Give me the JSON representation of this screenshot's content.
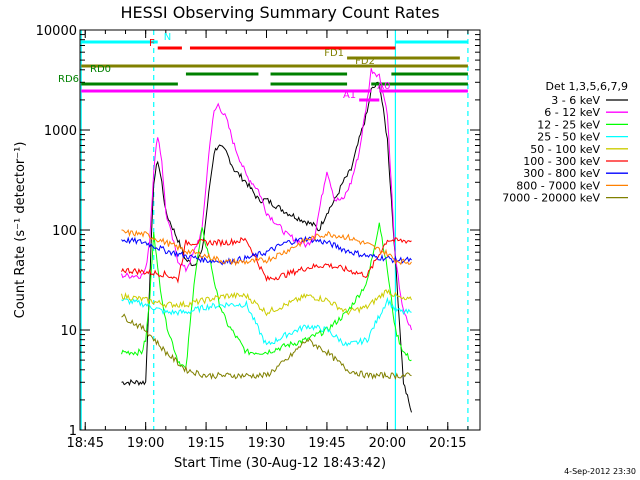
{
  "chart_data": {
    "type": "line",
    "title": "HESSI Observing Summary Count Rates",
    "xlabel": "Start Time (30-Aug-12 18:43:42)",
    "ylabel": "Count Rate (s⁻¹ detector⁻¹)",
    "y_scale": "log",
    "ylim": [
      1,
      10000
    ],
    "xlim": [
      "18:43:42",
      "20:23:00"
    ],
    "x_ticks": [
      "18:45",
      "19:00",
      "19:15",
      "19:30",
      "19:45",
      "20:00",
      "20:15"
    ],
    "y_ticks": [
      "1",
      "10",
      "100",
      "1000",
      "10000"
    ],
    "timestamp": "4-Sep-2012 23:30",
    "legend": {
      "title": "Det 1,3,5,6,7,9",
      "placement": "right",
      "entries": [
        {
          "label": "3 - 6 keV",
          "color": "#000000"
        },
        {
          "label": "6 - 12 keV",
          "color": "#ff00ff"
        },
        {
          "label": "12 - 25 keV",
          "color": "#00ff00"
        },
        {
          "label": "25 - 50 keV",
          "color": "#00ffff"
        },
        {
          "label": "50 - 100 keV",
          "color": "#cccc00"
        },
        {
          "label": "100 - 300 keV",
          "color": "#ff0000"
        },
        {
          "label": "300 - 800 keV",
          "color": "#0000ff"
        },
        {
          "label": "800 - 7000 keV",
          "color": "#ff8000"
        },
        {
          "label": "7000 - 20000 keV",
          "color": "#808000"
        }
      ]
    },
    "flags": [
      {
        "label": "N",
        "color": "#00ffff",
        "segments": [
          [
            "18:44",
            "19:03"
          ],
          [
            "20:02",
            "20:20"
          ]
        ]
      },
      {
        "label": "F",
        "color": "#ff0000",
        "segments": [
          [
            "19:03",
            "19:09"
          ],
          [
            "19:11",
            "20:02"
          ]
        ]
      },
      {
        "label": "FD1",
        "color": "#808000",
        "segments": [
          [
            "19:50",
            "20:18"
          ]
        ]
      },
      {
        "label": "FD2",
        "color": "#808000",
        "segments": [
          [
            "18:44",
            "20:20"
          ]
        ]
      },
      {
        "label": "RD0",
        "color": "#008000",
        "segments": [
          [
            "19:10",
            "19:28"
          ],
          [
            "19:31",
            "19:50"
          ],
          [
            "20:01",
            "20:20"
          ]
        ]
      },
      {
        "label": "RD6",
        "color": "#008000",
        "segments": [
          [
            "18:44",
            "19:08"
          ],
          [
            "19:31",
            "19:50"
          ],
          [
            "19:56",
            "20:20"
          ]
        ]
      },
      {
        "label": "A1",
        "color": "#ff00ff",
        "segments": [
          [
            "19:53",
            "19:58"
          ]
        ]
      },
      {
        "label": "A0",
        "color": "#ff00ff",
        "segments": [
          [
            "18:44",
            "19:56"
          ],
          [
            "19:58",
            "20:20"
          ]
        ]
      }
    ],
    "vertical_lines": [
      {
        "time": "18:44",
        "color": "#00ffff",
        "style": "solid"
      },
      {
        "time": "19:02",
        "color": "#00ffff",
        "style": "dashed"
      },
      {
        "time": "20:02",
        "color": "#00ffff",
        "style": "solid"
      },
      {
        "time": "20:20",
        "color": "#00ffff",
        "style": "dashed"
      }
    ],
    "series": [
      {
        "name": "3 - 6 keV",
        "color": "#000000",
        "x": [
          "18:54",
          "18:59",
          "19:00",
          "19:01",
          "19:02",
          "19:03",
          "19:04",
          "19:05",
          "19:08",
          "19:10",
          "19:12",
          "19:14",
          "19:16",
          "19:17",
          "19:18",
          "19:20",
          "19:22",
          "19:25",
          "19:28",
          "19:30",
          "19:35",
          "19:40",
          "19:42",
          "19:43",
          "19:45",
          "19:47",
          "19:49",
          "19:51",
          "19:53",
          "19:55",
          "19:56",
          "19:58",
          "20:00",
          "20:02",
          "20:04",
          "20:06"
        ],
        "y": [
          3,
          3,
          3,
          30,
          300,
          500,
          300,
          150,
          80,
          50,
          45,
          60,
          300,
          600,
          700,
          600,
          400,
          300,
          200,
          200,
          150,
          120,
          110,
          100,
          150,
          200,
          300,
          400,
          800,
          1500,
          2500,
          3000,
          800,
          50,
          3,
          1.5
        ]
      },
      {
        "name": "6 - 12 keV",
        "color": "#ff00ff",
        "x": [
          "18:54",
          "18:59",
          "19:00",
          "19:01",
          "19:02",
          "19:03",
          "19:04",
          "19:05",
          "19:08",
          "19:10",
          "19:12",
          "19:14",
          "19:16",
          "19:17",
          "19:18",
          "19:20",
          "19:22",
          "19:25",
          "19:28",
          "19:30",
          "19:35",
          "19:40",
          "19:42",
          "19:43",
          "19:45",
          "19:47",
          "19:49",
          "19:51",
          "19:53",
          "19:55",
          "19:56",
          "19:58",
          "20:00",
          "20:02",
          "20:04",
          "20:06"
        ],
        "y": [
          35,
          35,
          40,
          80,
          400,
          900,
          500,
          150,
          50,
          40,
          60,
          100,
          800,
          1500,
          1800,
          1300,
          700,
          350,
          250,
          150,
          90,
          70,
          90,
          150,
          400,
          200,
          200,
          300,
          600,
          2000,
          4000,
          3500,
          1500,
          50,
          15,
          10
        ]
      },
      {
        "name": "12 - 25 keV",
        "color": "#00ff00",
        "x": [
          "18:54",
          "18:59",
          "19:00",
          "19:01",
          "19:02",
          "19:03",
          "19:05",
          "19:08",
          "19:10",
          "19:12",
          "19:14",
          "19:16",
          "19:18",
          "19:20",
          "19:25",
          "19:30",
          "19:35",
          "19:40",
          "19:45",
          "19:50",
          "19:55",
          "19:58",
          "20:00",
          "20:02",
          "20:04",
          "20:06"
        ],
        "y": [
          6,
          6,
          8,
          20,
          100,
          40,
          12,
          5,
          4,
          30,
          100,
          50,
          20,
          12,
          6,
          6,
          7,
          8,
          10,
          15,
          30,
          120,
          40,
          10,
          6,
          5
        ]
      },
      {
        "name": "25 - 50 keV",
        "color": "#00ffff",
        "x": [
          "18:54",
          "19:00",
          "19:05",
          "19:10",
          "19:15",
          "19:20",
          "19:25",
          "19:30",
          "19:35",
          "19:40",
          "19:45",
          "19:50",
          "19:55",
          "20:00",
          "20:02",
          "20:04",
          "20:06"
        ],
        "y": [
          20,
          18,
          15,
          15,
          17,
          18,
          18,
          7,
          9,
          11,
          10,
          7,
          8,
          20,
          16,
          15,
          15
        ]
      },
      {
        "name": "50 - 100 keV",
        "color": "#cccc00",
        "x": [
          "18:54",
          "19:00",
          "19:05",
          "19:10",
          "19:15",
          "19:20",
          "19:25",
          "19:30",
          "19:35",
          "19:40",
          "19:45",
          "19:50",
          "19:55",
          "20:00",
          "20:02",
          "20:04",
          "20:06"
        ],
        "y": [
          22,
          20,
          18,
          18,
          20,
          22,
          22,
          15,
          18,
          22,
          20,
          15,
          17,
          25,
          22,
          20,
          20
        ]
      },
      {
        "name": "100 - 300 keV",
        "color": "#ff0000",
        "x": [
          "18:54",
          "19:00",
          "19:05",
          "19:08",
          "19:10",
          "19:12",
          "19:15",
          "19:20",
          "19:25",
          "19:30",
          "19:35",
          "19:40",
          "19:45",
          "19:50",
          "19:55",
          "20:00",
          "20:02",
          "20:04",
          "20:06"
        ],
        "y": [
          40,
          38,
          36,
          32,
          75,
          75,
          75,
          75,
          80,
          32,
          36,
          42,
          45,
          40,
          35,
          80,
          78,
          78,
          78
        ]
      },
      {
        "name": "300 - 800 keV",
        "color": "#0000ff",
        "x": [
          "18:54",
          "19:00",
          "19:05",
          "19:10",
          "19:15",
          "19:20",
          "19:25",
          "19:30",
          "19:35",
          "19:40",
          "19:45",
          "19:50",
          "19:55",
          "20:00",
          "20:02",
          "20:04",
          "20:06"
        ],
        "y": [
          80,
          75,
          62,
          55,
          50,
          48,
          52,
          60,
          75,
          82,
          75,
          62,
          55,
          52,
          50,
          50,
          50
        ]
      },
      {
        "name": "800 - 7000 keV",
        "color": "#ff8000",
        "x": [
          "18:54",
          "19:00",
          "19:05",
          "19:10",
          "19:15",
          "19:20",
          "19:25",
          "19:30",
          "19:35",
          "19:40",
          "19:45",
          "19:50",
          "19:55",
          "20:00",
          "20:02",
          "20:04",
          "20:06"
        ],
        "y": [
          95,
          90,
          75,
          62,
          55,
          48,
          48,
          50,
          62,
          80,
          92,
          85,
          72,
          58,
          50,
          48,
          48
        ]
      },
      {
        "name": "7000 - 20000 keV",
        "color": "#808000",
        "x": [
          "18:54",
          "19:00",
          "19:05",
          "19:10",
          "19:15",
          "19:20",
          "19:25",
          "19:30",
          "19:35",
          "19:40",
          "19:45",
          "19:50",
          "19:55",
          "20:00",
          "20:02",
          "20:04",
          "20:06"
        ],
        "y": [
          14,
          10,
          6,
          4,
          3.5,
          3.5,
          3.5,
          3.5,
          5,
          8,
          6,
          4,
          3.5,
          3.5,
          3.5,
          3.5,
          3.5
        ]
      }
    ]
  }
}
